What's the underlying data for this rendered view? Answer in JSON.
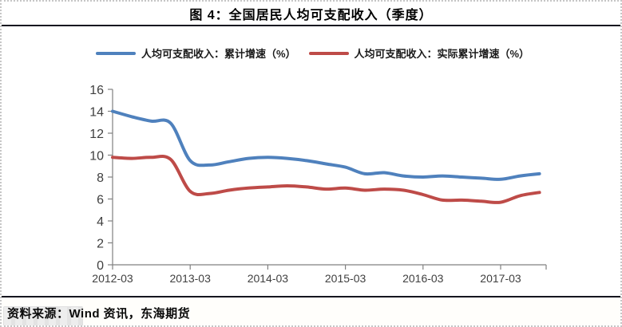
{
  "page": {
    "title": "图 4：全国居民人均可支配收入（季度）",
    "source_note": "资料来源：Wind 资讯，东海期货"
  },
  "legend": {
    "items": [
      {
        "label": "人均可支配收入：累计增速（%）",
        "color": "#4F81BD"
      },
      {
        "label": "人均可支配收入：实际累计增速（%）",
        "color": "#BE4B48"
      }
    ]
  },
  "chart_data": {
    "type": "line",
    "smooth": true,
    "grid": false,
    "legend_position": "top",
    "title": "图 4：全国居民人均可支配收入（季度）",
    "xlabel": "",
    "ylabel": "",
    "ylim": [
      0,
      16
    ],
    "yticks": [
      0,
      2,
      4,
      6,
      8,
      10,
      12,
      14,
      16
    ],
    "categories": [
      "2012-03",
      "2012-06",
      "2012-09",
      "2012-12",
      "2013-03",
      "2013-06",
      "2013-09",
      "2013-12",
      "2014-03",
      "2014-06",
      "2014-09",
      "2014-12",
      "2015-03",
      "2015-06",
      "2015-09",
      "2015-12",
      "2016-03",
      "2016-06",
      "2016-09",
      "2016-12",
      "2017-03",
      "2017-06",
      "2017-09"
    ],
    "x_tick_labels": [
      "2012-03",
      "2013-03",
      "2014-03",
      "2015-03",
      "2016-03",
      "2017-03"
    ],
    "x_tick_indices": [
      0,
      4,
      8,
      12,
      16,
      20
    ],
    "series": [
      {
        "name": "人均可支配收入：累计增速（%）",
        "color": "#4F81BD",
        "values": [
          14.0,
          13.5,
          13.1,
          12.9,
          9.5,
          9.1,
          9.4,
          9.7,
          9.8,
          9.7,
          9.5,
          9.2,
          8.9,
          8.3,
          8.4,
          8.1,
          8.0,
          8.1,
          8.0,
          7.9,
          7.8,
          8.1,
          8.3
        ]
      },
      {
        "name": "人均可支配收入：实际累计增速（%）",
        "color": "#BE4B48",
        "values": [
          9.8,
          9.7,
          9.8,
          9.6,
          6.7,
          6.5,
          6.8,
          7.0,
          7.1,
          7.2,
          7.1,
          6.9,
          7.0,
          6.8,
          6.9,
          6.8,
          6.4,
          5.9,
          5.9,
          5.8,
          5.7,
          6.3,
          6.6
        ]
      }
    ]
  },
  "colors": {
    "axis": "#808080",
    "tick_text": "#3f3f3f",
    "rule": "#15151f"
  }
}
